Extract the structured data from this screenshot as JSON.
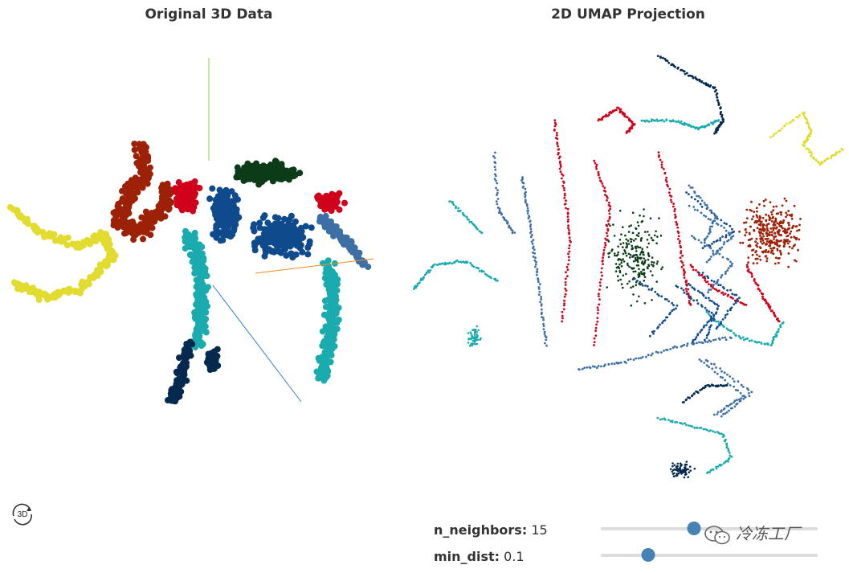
{
  "titles": {
    "left": "Original 3D Data",
    "right": "2D UMAP Projection"
  },
  "colors": {
    "tusk": "#e1dc2f",
    "head": "#9c2107",
    "red": "#d0021b",
    "dark_green": "#0c3b18",
    "dark_blue": "#0e4a8c",
    "steel_blue": "#3d6fa5",
    "teal": "#1aabaf",
    "navy": "#062a4f",
    "slider_thumb": "#4682b4"
  },
  "view3d": {
    "reset_button_label": "3D",
    "reset_button_icon": "rotate-3d-icon"
  },
  "controls": {
    "n_neighbors": {
      "label": "n_neighbors:",
      "value": "15",
      "fraction": 0.43
    },
    "min_dist": {
      "label": "min_dist:",
      "value": "0.1",
      "fraction": 0.22
    }
  },
  "watermark": {
    "text": "冷冻工厂",
    "icon": "wechat-icon"
  }
}
